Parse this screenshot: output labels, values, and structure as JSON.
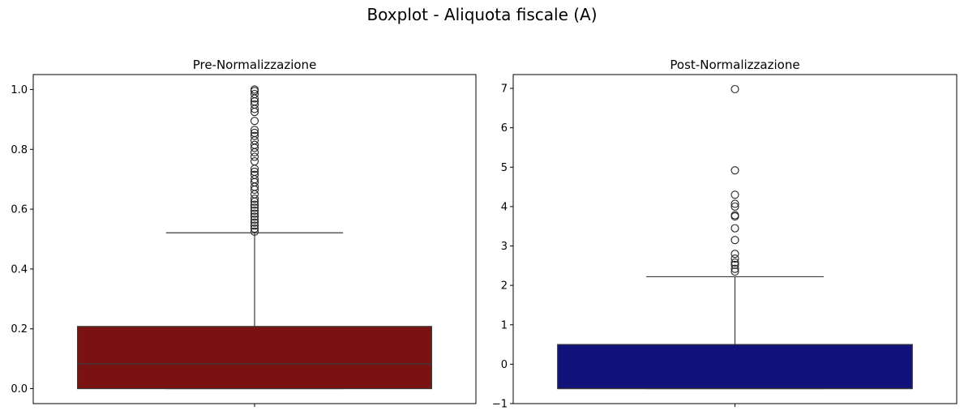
{
  "suptitle": "Boxplot - Aliquota fiscale (A)",
  "chart_data": [
    {
      "type": "box",
      "title": "Pre-Normalizzazione",
      "xlabel": "",
      "ylabel": "",
      "ylim": [
        -0.05,
        1.05
      ],
      "yticks": [
        0.0,
        0.2,
        0.4,
        0.6,
        0.8,
        1.0
      ],
      "ytick_labels": [
        "0.0",
        "0.2",
        "0.4",
        "0.6",
        "0.8",
        "1.0"
      ],
      "fill_color": "#7a1212",
      "box": {
        "whisker_low": 0.0,
        "q1": 0.0,
        "median": 0.083,
        "q3": 0.208,
        "whisker_high": 0.521
      },
      "outliers": [
        0.525,
        0.535,
        0.545,
        0.555,
        0.565,
        0.575,
        0.585,
        0.595,
        0.605,
        0.615,
        0.625,
        0.635,
        0.65,
        0.665,
        0.675,
        0.69,
        0.7,
        0.715,
        0.725,
        0.735,
        0.76,
        0.775,
        0.79,
        0.805,
        0.815,
        0.83,
        0.845,
        0.855,
        0.865,
        0.895,
        0.925,
        0.935,
        0.95,
        0.96,
        0.97,
        0.985,
        0.995,
        1.0
      ]
    },
    {
      "type": "box",
      "title": "Post-Normalizzazione",
      "xlabel": "",
      "ylabel": "",
      "ylim": [
        -1.0,
        7.35
      ],
      "yticks": [
        -1,
        0,
        1,
        2,
        3,
        4,
        5,
        6,
        7
      ],
      "ytick_labels": [
        "−1",
        "0",
        "1",
        "2",
        "3",
        "4",
        "5",
        "6",
        "7"
      ],
      "fill_color": "#11117a",
      "box": {
        "whisker_low": -0.62,
        "q1": -0.62,
        "median": -0.62,
        "q3": 0.5,
        "whisker_high": 2.22
      },
      "outliers": [
        2.35,
        2.42,
        2.52,
        2.58,
        2.68,
        2.8,
        3.15,
        3.45,
        3.75,
        3.78,
        4.0,
        4.07,
        4.3,
        4.92,
        6.98
      ]
    }
  ]
}
